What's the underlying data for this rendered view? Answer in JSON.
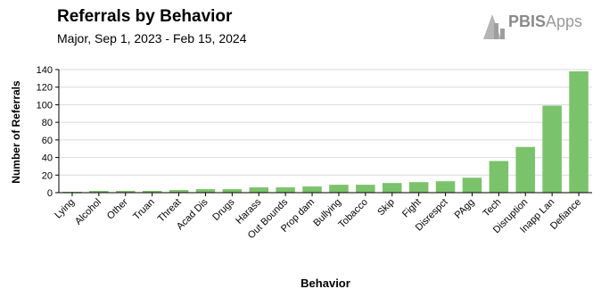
{
  "header": {
    "title": "Referrals by Behavior",
    "subtitle": "Major, Sep 1, 2023 - Feb 15, 2024"
  },
  "logo": {
    "text_bold": "PBIS",
    "text_light": "Apps",
    "icon": "pbis-building-icon"
  },
  "colors": {
    "bar": "#7ac36a",
    "grid": "#d9d9d9",
    "axis": "#000000"
  },
  "chart_data": {
    "type": "bar",
    "title": "Referrals by Behavior",
    "subtitle": "Major, Sep 1, 2023 - Feb 15, 2024",
    "xlabel": "Behavior",
    "ylabel": "Number of Referrals",
    "ylim": [
      0,
      140
    ],
    "yticks": [
      0,
      20,
      40,
      60,
      80,
      100,
      120,
      140
    ],
    "grid": true,
    "legend": "none",
    "categories": [
      "Lying",
      "Alcohol",
      "Other",
      "Truan",
      "Threat",
      "Acad Dis",
      "Drugs",
      "Harass",
      "Out Bounds",
      "Prop dam",
      "Bullying",
      "Tobacco",
      "Skip",
      "Fight",
      "Disrespct",
      "PAgg",
      "Tech",
      "Disruption",
      "Inapp Lan",
      "Defiance"
    ],
    "values": [
      1,
      2,
      2,
      2,
      3,
      4,
      4,
      6,
      6,
      7,
      9,
      9,
      11,
      12,
      13,
      17,
      36,
      52,
      99,
      138
    ]
  }
}
